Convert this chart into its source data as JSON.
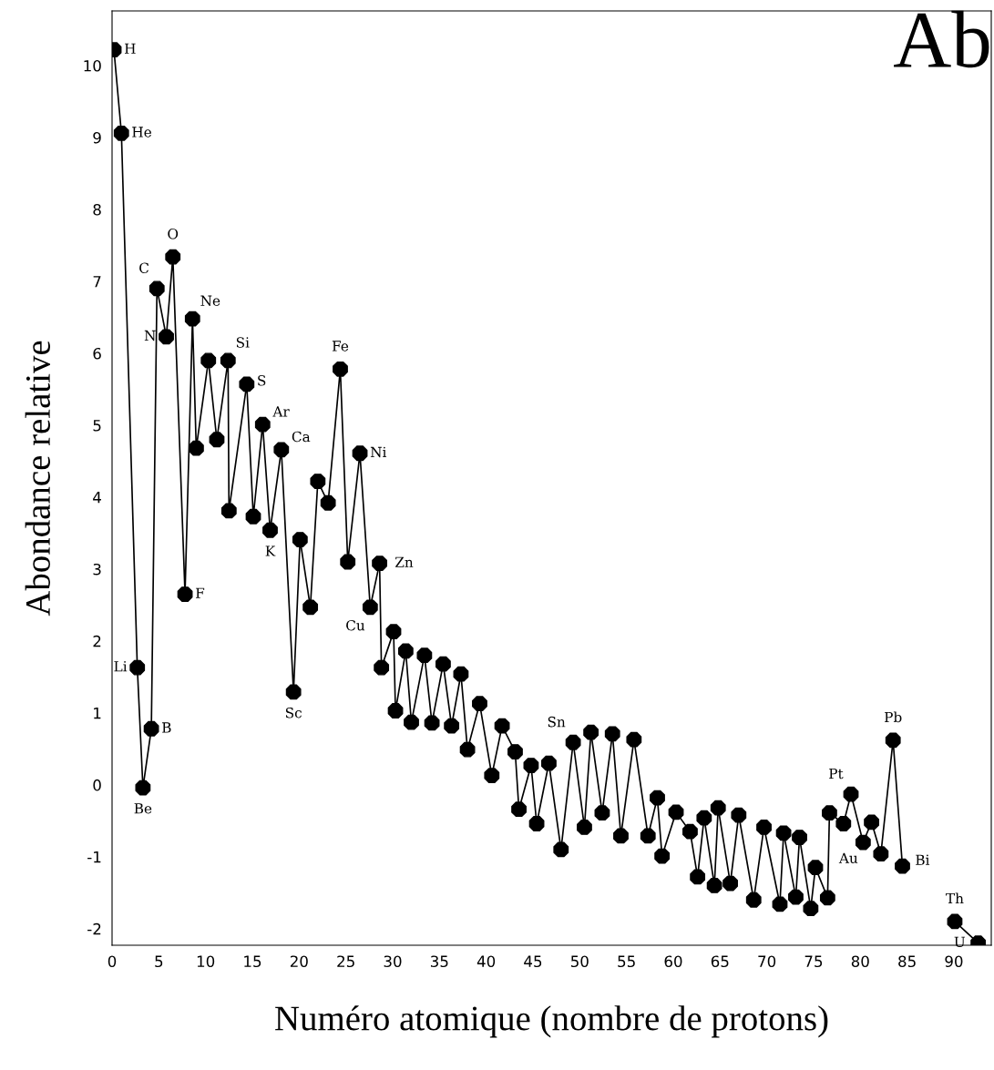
{
  "chart_data": {
    "type": "line",
    "title": "Ab",
    "xlabel": "Numéro atomique (nombre de protons)",
    "ylabel": "Abondance relative",
    "xlim": [
      0,
      94
    ],
    "xticks": [
      0,
      5,
      10,
      15,
      20,
      25,
      30,
      35,
      40,
      45,
      50,
      55,
      60,
      65,
      70,
      75,
      80,
      85,
      90
    ],
    "ylim": [
      -2.23,
      10.76
    ],
    "yticks": [
      -2,
      -1,
      0,
      1,
      2,
      3,
      4,
      5,
      6,
      7,
      8,
      9,
      10
    ],
    "grid": false,
    "legend": false,
    "marker": "circle",
    "line_style": "solid",
    "series": [
      {
        "color": "#000000",
        "x": [
          0.2,
          1.0,
          2.7,
          3.3,
          4.2,
          4.8,
          5.8,
          6.5,
          7.8,
          8.6,
          9.0,
          10.3,
          11.2,
          12.4,
          12.5,
          14.4,
          15.1,
          16.1,
          16.9,
          18.1,
          19.4,
          20.1,
          21.2,
          22.0,
          23.1,
          24.4,
          25.2,
          26.5,
          27.6,
          28.6,
          28.8,
          30.1,
          30.3,
          31.4,
          32.0,
          33.4,
          34.2,
          35.4,
          36.3,
          37.3,
          38.0,
          39.3,
          40.6,
          41.7,
          43.1,
          43.5,
          44.8,
          45.4,
          46.7,
          48.0,
          49.3,
          50.5,
          51.2,
          52.4,
          53.5,
          54.4,
          55.8,
          57.3,
          58.3,
          58.8,
          60.3,
          61.8,
          62.6,
          63.3,
          64.4,
          64.8,
          66.1,
          67.0,
          68.6,
          69.7,
          71.4,
          71.8,
          73.1,
          73.5,
          74.7,
          75.2,
          76.5,
          76.7,
          78.2,
          79.0,
          80.3,
          81.2,
          82.2,
          83.5,
          84.5,
          87.0,
          90.1,
          92.6
        ],
        "values": [
          10.22,
          9.06,
          1.63,
          -0.04,
          0.78,
          6.9,
          6.23,
          7.34,
          2.65,
          6.48,
          4.68,
          5.9,
          4.8,
          5.9,
          3.81,
          5.57,
          3.73,
          5.01,
          3.54,
          4.66,
          1.29,
          3.41,
          2.47,
          4.22,
          3.92,
          5.78,
          3.1,
          4.61,
          2.47,
          3.08,
          1.63,
          2.13,
          1.03,
          1.86,
          0.87,
          1.8,
          0.86,
          1.68,
          0.82,
          1.54,
          0.49,
          1.13,
          0.13,
          0.82,
          0.46,
          -0.34,
          0.27,
          -0.54,
          0.3,
          -0.9,
          0.59,
          -0.59,
          0.73,
          -0.39,
          0.71,
          -0.71,
          0.63,
          -0.71,
          -0.18,
          -0.99,
          -0.38,
          -0.65,
          -1.28,
          -0.46,
          -1.4,
          -0.32,
          -1.37,
          -0.42,
          -1.6,
          -0.59,
          -1.66,
          -0.67,
          -1.56,
          -0.73,
          -1.72,
          -1.15,
          -1.57,
          -0.39,
          -0.54,
          -0.13,
          -0.8,
          -0.52,
          -0.96,
          0.62,
          -1.13,
          null,
          -1.9,
          -2.2
        ]
      }
    ],
    "annotations": [
      {
        "text": "H",
        "x": 0.2,
        "y": 10.22
      },
      {
        "text": "He",
        "x": 1.0,
        "y": 9.06
      },
      {
        "text": "Li",
        "x": 2.7,
        "y": 1.63
      },
      {
        "text": "Be",
        "x": 3.3,
        "y": -0.04
      },
      {
        "text": "B",
        "x": 4.2,
        "y": 0.78
      },
      {
        "text": "C",
        "x": 4.8,
        "y": 6.9
      },
      {
        "text": "N",
        "x": 5.8,
        "y": 6.23
      },
      {
        "text": "O",
        "x": 6.5,
        "y": 7.34
      },
      {
        "text": "F",
        "x": 7.8,
        "y": 2.65
      },
      {
        "text": "Ne",
        "x": 8.6,
        "y": 6.48
      },
      {
        "text": "Si",
        "x": 12.4,
        "y": 5.9
      },
      {
        "text": "S",
        "x": 14.4,
        "y": 5.57
      },
      {
        "text": "Ar",
        "x": 16.1,
        "y": 5.01
      },
      {
        "text": "K",
        "x": 16.9,
        "y": 3.54
      },
      {
        "text": "Ca",
        "x": 18.1,
        "y": 4.66
      },
      {
        "text": "Sc",
        "x": 19.4,
        "y": 1.29
      },
      {
        "text": "Fe",
        "x": 24.4,
        "y": 5.78
      },
      {
        "text": "Ni",
        "x": 26.5,
        "y": 4.61
      },
      {
        "text": "Cu",
        "x": 27.6,
        "y": 2.47
      },
      {
        "text": "Zn",
        "x": 28.6,
        "y": 3.08
      },
      {
        "text": "Sn",
        "x": 49.3,
        "y": 0.59
      },
      {
        "text": "Pt",
        "x": 79.0,
        "y": -0.13
      },
      {
        "text": "Au",
        "x": 80.3,
        "y": -0.8
      },
      {
        "text": "Pb",
        "x": 83.5,
        "y": 0.62
      },
      {
        "text": "Bi",
        "x": 84.5,
        "y": -1.13
      },
      {
        "text": "Th",
        "x": 90.1,
        "y": -1.9
      },
      {
        "text": "U",
        "x": 92.6,
        "y": -2.2
      }
    ]
  }
}
